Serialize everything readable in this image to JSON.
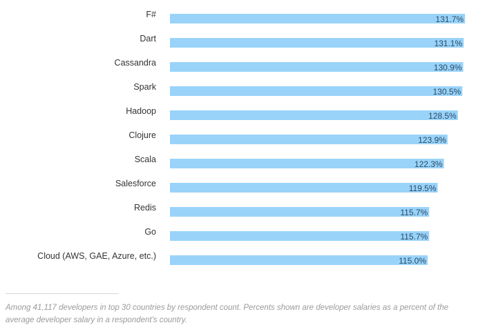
{
  "chart_data": {
    "type": "bar",
    "orientation": "horizontal",
    "title": "",
    "xlabel": "",
    "ylabel": "",
    "categories": [
      "F#",
      "Dart",
      "Cassandra",
      "Spark",
      "Hadoop",
      "Clojure",
      "Scala",
      "Salesforce",
      "Redis",
      "Go",
      "Cloud (AWS, GAE, Azure, etc.)"
    ],
    "values": [
      131.7,
      131.1,
      130.9,
      130.5,
      128.5,
      123.9,
      122.3,
      119.5,
      115.7,
      115.7,
      115.0
    ],
    "value_labels": [
      "131.7%",
      "131.1%",
      "130.9%",
      "130.5%",
      "128.5%",
      "123.9%",
      "122.3%",
      "119.5%",
      "115.7%",
      "115.7%",
      "115.0%"
    ],
    "unit": "%",
    "bar_color": "#99d3f9",
    "grid": false,
    "legend": "none"
  },
  "footnote": "Among 41,117 developers in top 30 countries by respondent count. Percents shown are developer salaries as a percent of the average developer salary in a respondent's country."
}
